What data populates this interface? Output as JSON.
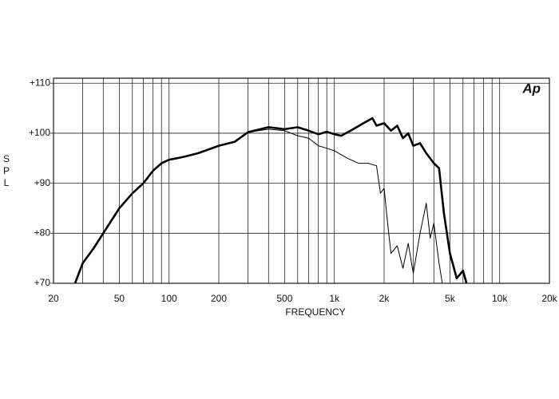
{
  "chart_data": {
    "type": "line",
    "x_label": "FREQUENCY",
    "y_label": "SPL",
    "logo": "Ap",
    "xscale": "log",
    "xlim": [
      20,
      20000
    ],
    "ylim": [
      70,
      111
    ],
    "xticks": [
      20,
      50,
      100,
      200,
      500,
      {
        "value": 1000,
        "label": "1k"
      },
      {
        "value": 2000,
        "label": "2k"
      },
      {
        "value": 5000,
        "label": "5k"
      },
      {
        "value": 10000,
        "label": "10k"
      },
      {
        "value": 20000,
        "label": "20k"
      }
    ],
    "xminor_ticks": [
      30,
      40,
      60,
      70,
      80,
      90,
      300,
      400,
      600,
      700,
      800,
      900,
      3000,
      4000,
      6000,
      7000,
      8000,
      9000
    ],
    "yticks": [
      {
        "value": 70,
        "label": "+70"
      },
      {
        "value": 80,
        "label": "+80"
      },
      {
        "value": 90,
        "label": "+90"
      },
      {
        "value": 100,
        "label": "+100"
      },
      {
        "value": 110,
        "label": "+110"
      }
    ],
    "grid": true,
    "series": [
      {
        "color": "#000000",
        "width": 2.6,
        "x": [
          27,
          30,
          35,
          40,
          50,
          60,
          70,
          80,
          90,
          100,
          120,
          150,
          200,
          250,
          300,
          400,
          450,
          500,
          600,
          700,
          800,
          900,
          1000,
          1100,
          1300,
          1500,
          1700,
          1800,
          2000,
          2200,
          2400,
          2600,
          2800,
          3000,
          3300,
          3600,
          4000,
          4300,
          4600,
          5000,
          5500,
          6000,
          6300
        ],
        "values": [
          70,
          74,
          77,
          80,
          85,
          88,
          90,
          92.5,
          94,
          94.7,
          95.2,
          96,
          97.5,
          98.3,
          100.2,
          101.2,
          101,
          100.8,
          101.2,
          100.5,
          99.8,
          100.3,
          99.8,
          99.5,
          100.8,
          102,
          103,
          101.5,
          102,
          100.5,
          101.5,
          99,
          100,
          97.5,
          98,
          96,
          94,
          93,
          84,
          76,
          71,
          72.5,
          70
        ]
      },
      {
        "color": "#000000",
        "width": 1,
        "x": [
          300,
          400,
          500,
          600,
          700,
          800,
          900,
          1000,
          1200,
          1400,
          1600,
          1800,
          1900,
          2000,
          2100,
          2200,
          2400,
          2600,
          2800,
          3000,
          3300,
          3600,
          3800,
          4000,
          4300,
          4500
        ],
        "values": [
          100.2,
          100.8,
          100.5,
          99.5,
          99,
          97.5,
          97,
          96.5,
          95,
          94,
          94,
          93.5,
          88,
          89,
          82,
          76,
          77.5,
          73,
          78,
          72,
          80,
          86,
          79,
          82,
          74,
          70
        ]
      }
    ]
  }
}
